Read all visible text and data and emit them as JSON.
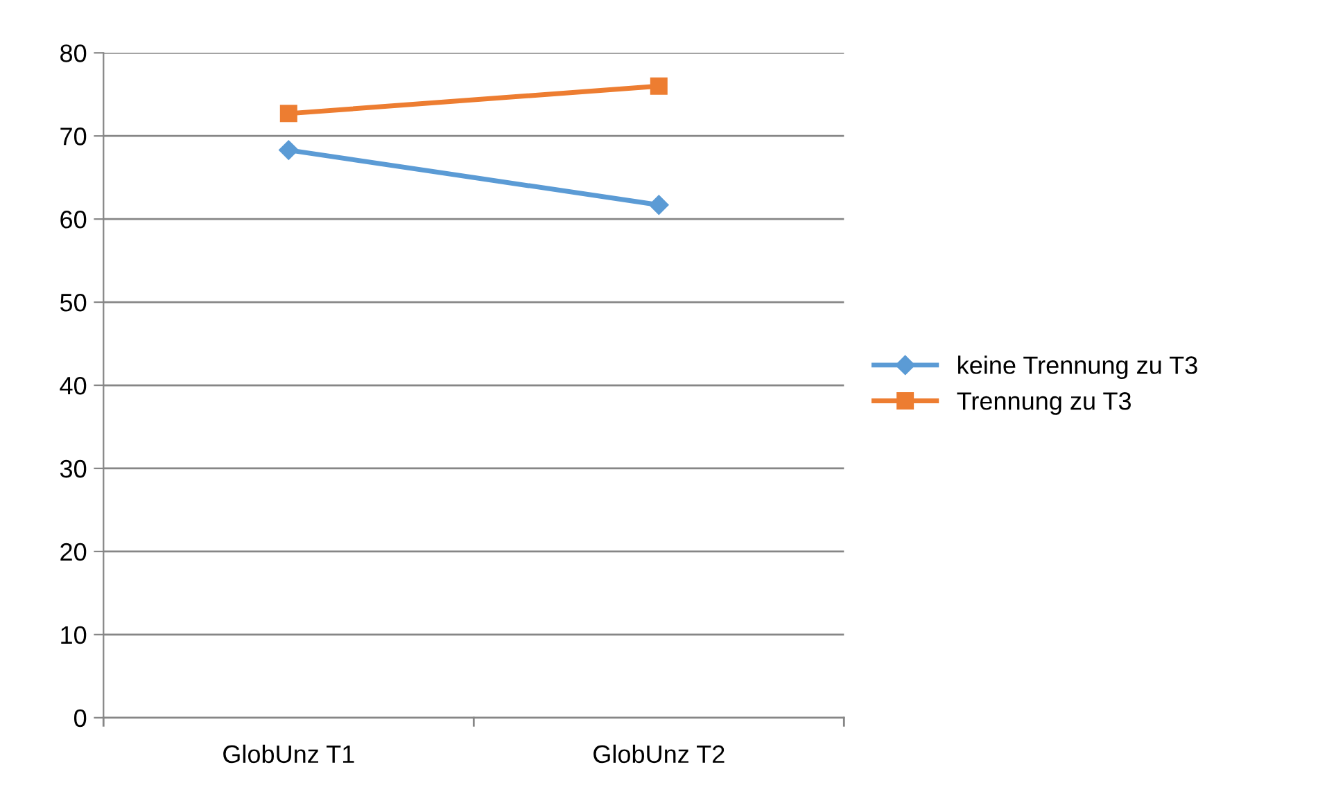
{
  "chart_data": {
    "type": "line",
    "categories": [
      "GlobUnz T1",
      "GlobUnz T2"
    ],
    "series": [
      {
        "name": "keine Trennung zu T3",
        "color": "#5b9bd5",
        "values": [
          68.3,
          61.7
        ],
        "marker": "diamond"
      },
      {
        "name": "Trennung zu T3",
        "color": "#ed7d31",
        "values": [
          72.7,
          76.0
        ],
        "marker": "square"
      }
    ],
    "ylim": [
      0,
      80
    ],
    "yticks": [
      0,
      10,
      20,
      30,
      40,
      50,
      60,
      70,
      80
    ],
    "grid": "y",
    "legend": "right",
    "line_style": "solid"
  }
}
